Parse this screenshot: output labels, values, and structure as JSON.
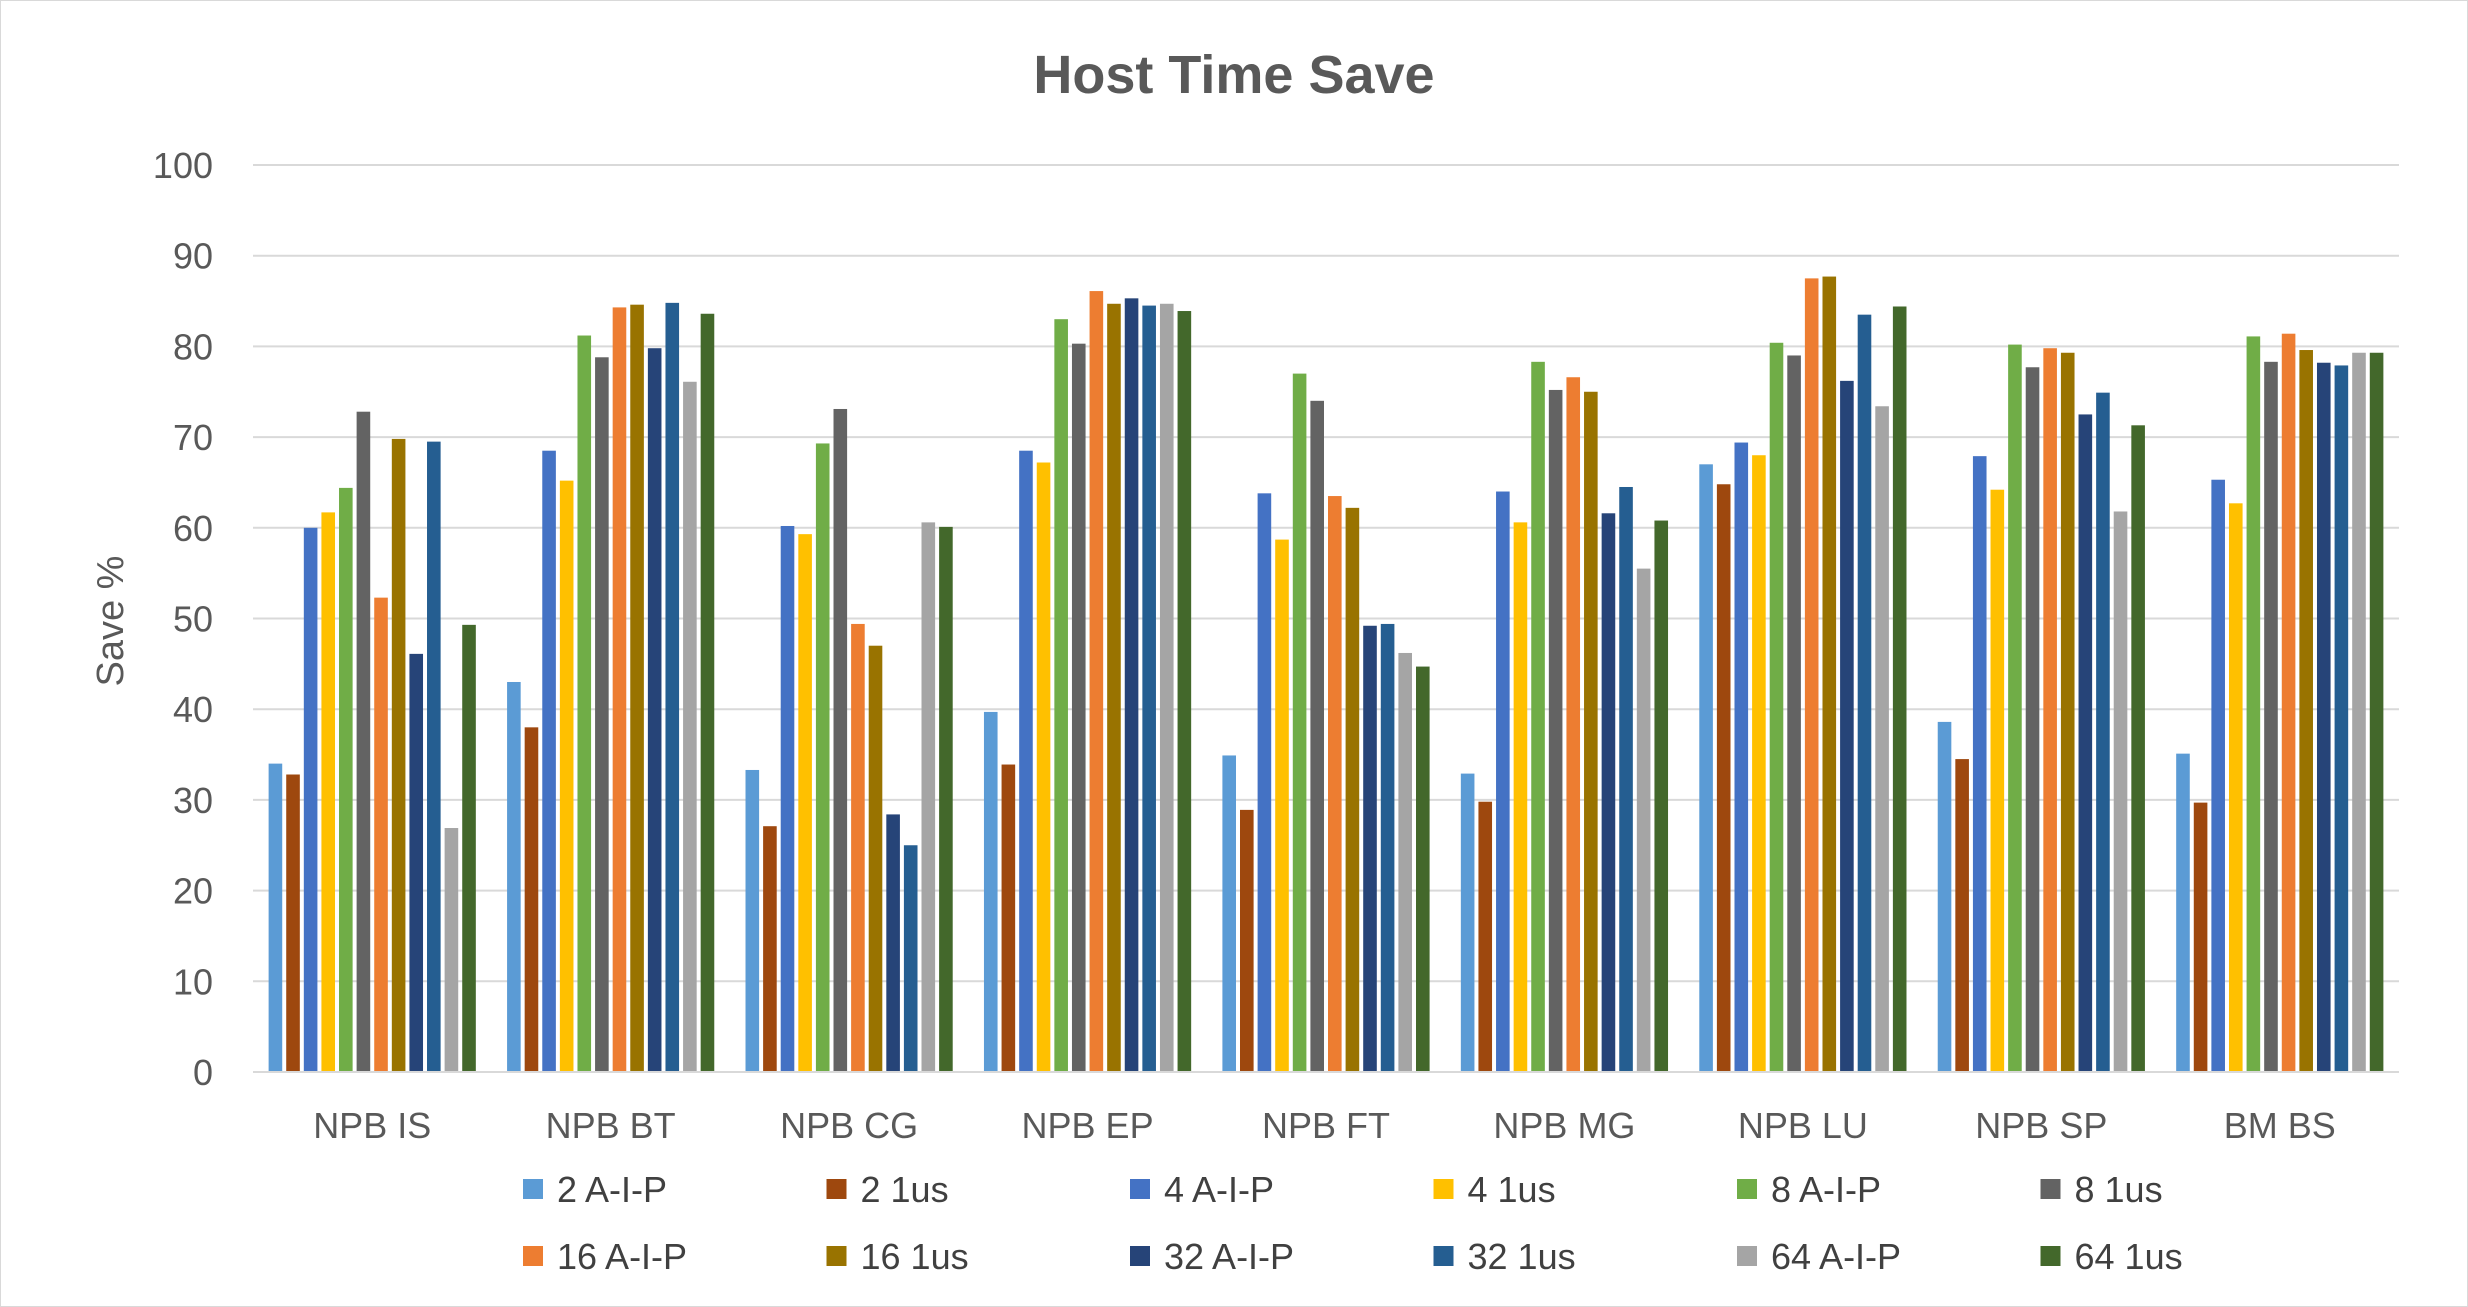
{
  "chart_data": {
    "type": "bar",
    "title": "Host Time Save",
    "xlabel": "",
    "ylabel": "Save %",
    "ylim": [
      0,
      100
    ],
    "yticks": [
      0,
      10,
      20,
      30,
      40,
      50,
      60,
      70,
      80,
      90,
      100
    ],
    "grid": true,
    "legend_position": "bottom",
    "categories": [
      "NPB IS",
      "NPB BT",
      "NPB CG",
      "NPB EP",
      "NPB FT",
      "NPB MG",
      "NPB LU",
      "NPB SP",
      "BM BS"
    ],
    "series": [
      {
        "name": "2 A-I-P",
        "color": "#5B9BD5",
        "values": [
          34,
          43,
          33.3,
          39.7,
          34.9,
          32.9,
          67,
          38.6,
          35.1
        ]
      },
      {
        "name": "2 1us",
        "color": "#9E480E",
        "values": [
          32.8,
          38,
          27.1,
          33.9,
          28.9,
          29.8,
          64.8,
          34.5,
          29.7
        ]
      },
      {
        "name": "4 A-I-P",
        "color": "#4472C4",
        "values": [
          60,
          68.5,
          60.2,
          68.5,
          63.8,
          64,
          69.4,
          67.9,
          65.3
        ]
      },
      {
        "name": "4 1us",
        "color": "#FFC000",
        "values": [
          61.7,
          65.2,
          59.3,
          67.2,
          58.7,
          60.6,
          68,
          64.2,
          62.7
        ]
      },
      {
        "name": "8 A-I-P",
        "color": "#70AD47",
        "values": [
          64.4,
          81.2,
          69.3,
          83,
          77,
          78.3,
          80.4,
          80.2,
          81.1
        ]
      },
      {
        "name": "8 1us",
        "color": "#636363",
        "values": [
          72.8,
          78.8,
          73.1,
          80.3,
          74,
          75.2,
          79,
          77.7,
          78.3
        ]
      },
      {
        "name": "16 A-I-P",
        "color": "#ED7D31",
        "values": [
          52.3,
          84.3,
          49.4,
          86.1,
          63.5,
          76.6,
          87.5,
          79.8,
          81.4
        ]
      },
      {
        "name": "16 1us",
        "color": "#997300",
        "values": [
          69.8,
          84.6,
          47,
          84.7,
          62.2,
          75,
          87.7,
          79.3,
          79.6
        ]
      },
      {
        "name": "32 A-I-P",
        "color": "#264478",
        "values": [
          46.1,
          79.8,
          28.4,
          85.3,
          49.2,
          61.6,
          76.2,
          72.5,
          78.2
        ]
      },
      {
        "name": "32 1us",
        "color": "#255E91",
        "values": [
          69.5,
          84.8,
          25,
          84.5,
          49.4,
          64.5,
          83.5,
          74.9,
          77.9
        ]
      },
      {
        "name": "64 A-I-P",
        "color": "#A5A5A5",
        "values": [
          26.9,
          76.1,
          60.6,
          84.7,
          46.2,
          55.5,
          73.4,
          61.8,
          79.3
        ]
      },
      {
        "name": "64 1us",
        "color": "#43682B",
        "values": [
          49.3,
          83.6,
          60.1,
          83.9,
          44.7,
          60.8,
          84.4,
          71.3,
          79.3
        ]
      }
    ]
  }
}
